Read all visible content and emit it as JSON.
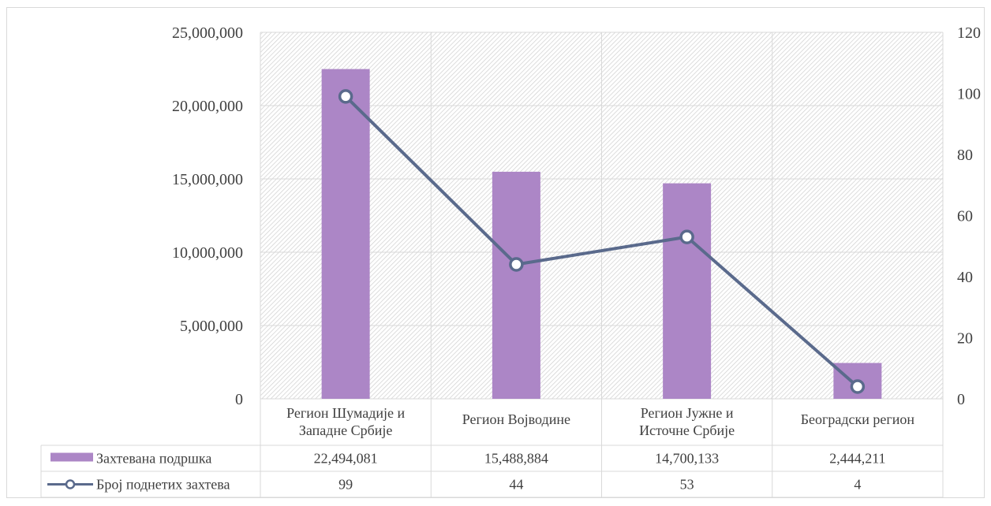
{
  "chart_data": {
    "type": "bar",
    "categories": [
      [
        "Регион Шумадије и",
        "Западне Србије"
      ],
      [
        "Регион Војводине"
      ],
      [
        "Регион Јужне и",
        "Источне Србије"
      ],
      [
        "Београдски регион"
      ]
    ],
    "series": [
      {
        "name": "Захтевана подршка",
        "type": "bar",
        "axis": "left",
        "values": [
          22494081,
          15488884,
          14700133,
          2444211
        ],
        "labels": [
          "22,494,081",
          "15,488,884",
          "14,700,133",
          "2,444,211"
        ],
        "color": "#ac86c6"
      },
      {
        "name": "Број поднетих захтева",
        "type": "line",
        "axis": "right",
        "values": [
          99,
          44,
          53,
          4
        ],
        "labels": [
          "99",
          "44",
          "53",
          "4"
        ],
        "color": "#5a6a8c"
      }
    ],
    "y_left": {
      "range": [
        0,
        25000000
      ],
      "ticks": [
        "0",
        "5,000,000",
        "10,000,000",
        "15,000,000",
        "20,000,000",
        "25,000,000"
      ],
      "tick_values": [
        0,
        5000000,
        10000000,
        15000000,
        20000000,
        25000000
      ]
    },
    "y_right": {
      "range": [
        0,
        120
      ],
      "ticks": [
        "0",
        "20",
        "40",
        "60",
        "80",
        "100",
        "120"
      ],
      "tick_values": [
        0,
        20,
        40,
        60,
        80,
        100,
        120
      ]
    },
    "grid": true,
    "legend": "data-table-below",
    "colors": {
      "bar": "#ac86c6",
      "line": "#5a6a8c",
      "grid": "#d9d9d9",
      "plot_hatch": "#d0d0d0"
    }
  }
}
